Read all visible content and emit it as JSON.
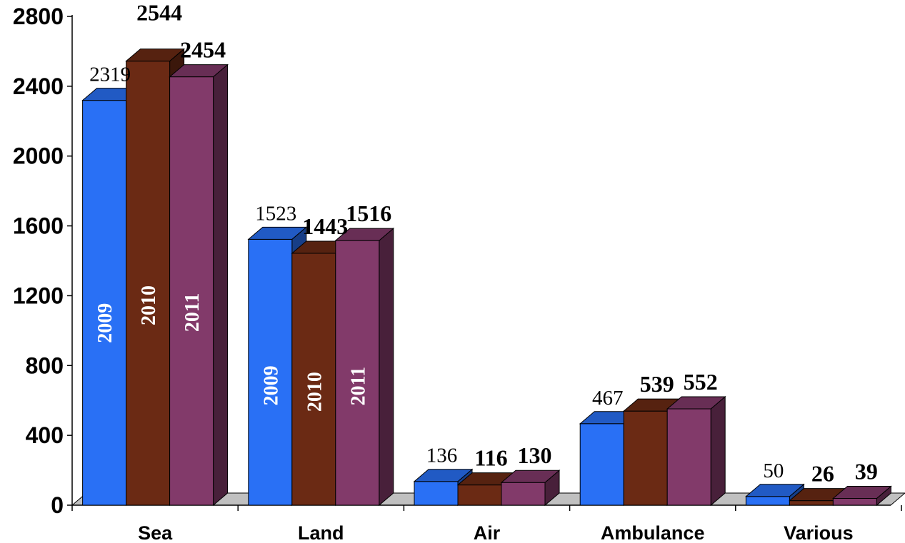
{
  "chart_data": {
    "type": "bar",
    "title": "",
    "xlabel": "",
    "ylabel": "",
    "ylim": [
      0,
      2800
    ],
    "yticks": [
      "0",
      "400",
      "800",
      "1200",
      "1600",
      "2000",
      "2400",
      "2800"
    ],
    "categories": [
      "Sea",
      "Land",
      "Air",
      "Ambulance",
      "Various"
    ],
    "series": [
      {
        "name": "2009",
        "color": "#2970F5",
        "values": [
          2319,
          1523,
          136,
          467,
          50
        ]
      },
      {
        "name": "2010",
        "color": "#6B2A14",
        "values": [
          2544,
          1443,
          116,
          539,
          26
        ]
      },
      {
        "name": "2011",
        "color": "#823A6A",
        "values": [
          2454,
          1516,
          130,
          552,
          39
        ]
      }
    ],
    "value_labels": [
      [
        "2319",
        "1523",
        "136",
        "467",
        "50"
      ],
      [
        "2544",
        "1443",
        "116",
        "539",
        "26"
      ],
      [
        "2454",
        "1516",
        "130",
        "552",
        "39"
      ]
    ],
    "in_bar_labels": [
      [
        "2009",
        "2009",
        "",
        "",
        ""
      ],
      [
        "2010",
        "2010",
        "",
        "",
        ""
      ],
      [
        "2011",
        "2011",
        "",
        "",
        ""
      ]
    ],
    "grid": false,
    "legend": "none",
    "style": "3d-columns"
  }
}
